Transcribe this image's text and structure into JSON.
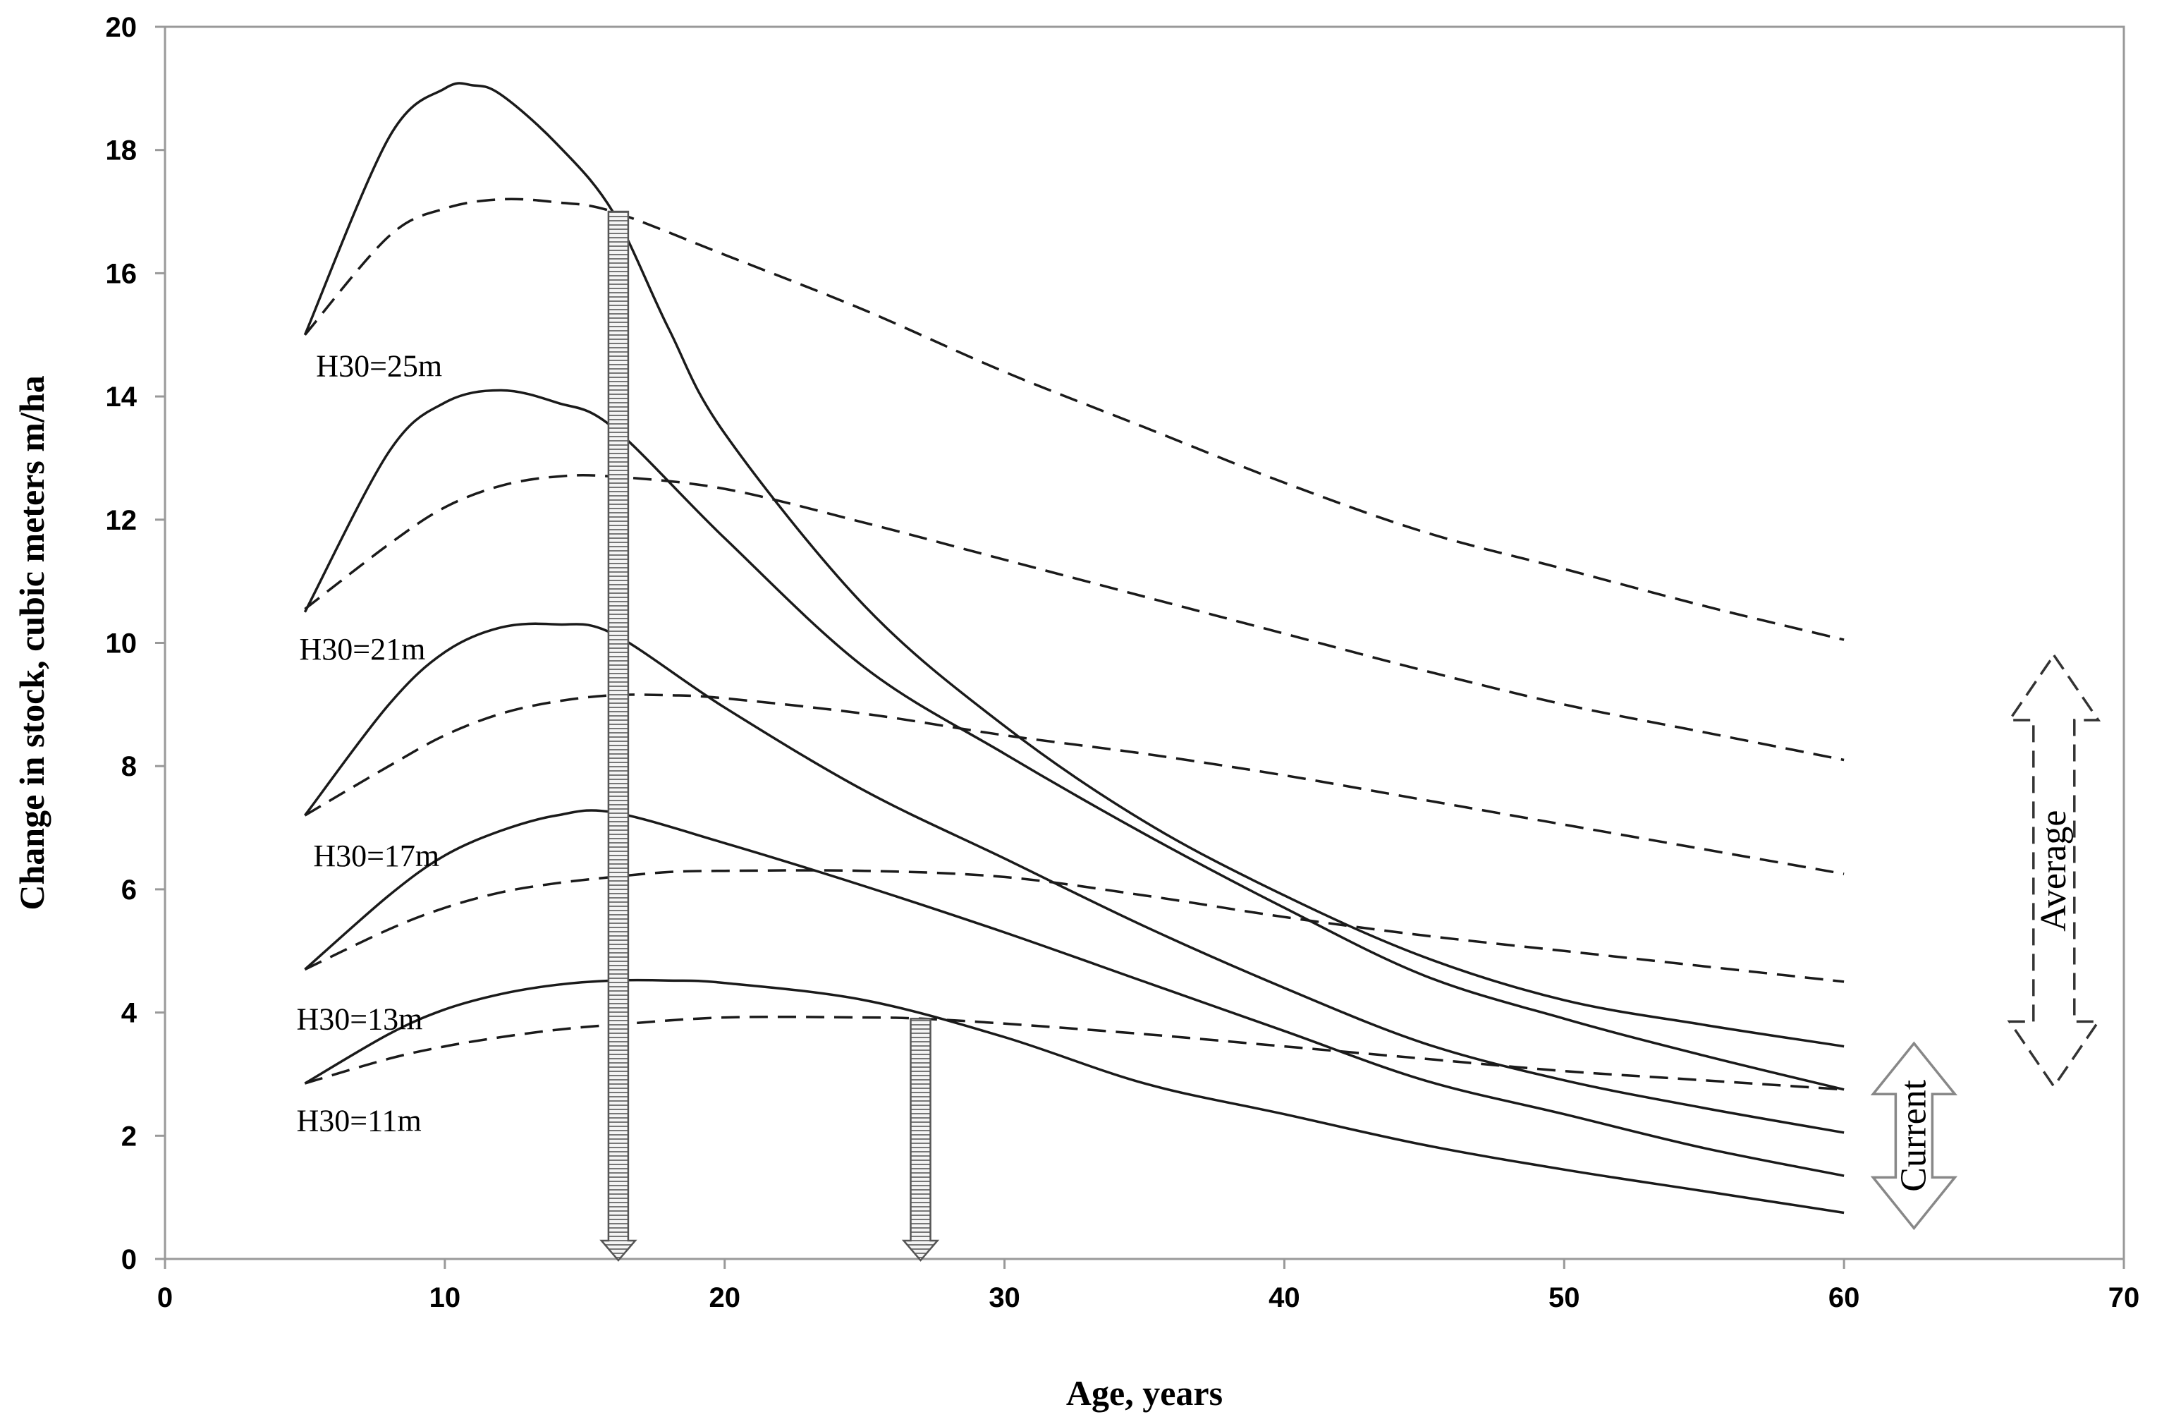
{
  "chart_data": {
    "type": "line",
    "title": "",
    "xlabel": "Age, years",
    "ylabel": "Change in stock, cubic meters m/ha",
    "xlim": [
      0,
      70
    ],
    "ylim": [
      0,
      20
    ],
    "xticks": [
      0,
      10,
      20,
      30,
      40,
      50,
      60,
      70
    ],
    "yticks": [
      0,
      2,
      4,
      6,
      8,
      10,
      12,
      14,
      16,
      18,
      20
    ],
    "grid": false,
    "legend": "none",
    "series": [
      {
        "name": "H30=25m",
        "type": "Current",
        "style": "solid",
        "x": [
          5,
          8,
          10,
          11,
          12,
          14,
          16,
          18,
          20,
          25,
          30,
          35,
          40,
          45,
          50,
          55,
          60
        ],
        "y": [
          15.0,
          18.2,
          19.0,
          19.05,
          18.9,
          18.1,
          17.0,
          15.1,
          13.4,
          10.6,
          8.65,
          7.1,
          5.9,
          4.9,
          4.2,
          3.8,
          3.45
        ]
      },
      {
        "name": "H30=25m",
        "type": "Average",
        "style": "dashed",
        "x": [
          5,
          8,
          10,
          12,
          14,
          16,
          20,
          25,
          30,
          35,
          40,
          45,
          50,
          55,
          60
        ],
        "y": [
          15.0,
          16.6,
          17.05,
          17.2,
          17.15,
          17.0,
          16.3,
          15.4,
          14.4,
          13.5,
          12.6,
          11.8,
          11.2,
          10.6,
          10.05
        ]
      },
      {
        "name": "H30=21m",
        "type": "Current",
        "style": "solid",
        "x": [
          5,
          8,
          10,
          12,
          14,
          16,
          20,
          25,
          30,
          35,
          40,
          45,
          50,
          55,
          60
        ],
        "y": [
          10.5,
          13.1,
          13.9,
          14.1,
          13.9,
          13.5,
          11.7,
          9.6,
          8.2,
          6.9,
          5.7,
          4.6,
          3.9,
          3.3,
          2.75
        ]
      },
      {
        "name": "H30=21m",
        "type": "Average",
        "style": "dashed",
        "x": [
          5,
          8,
          10,
          12,
          14,
          16,
          20,
          25,
          30,
          35,
          40,
          45,
          50,
          55,
          60
        ],
        "y": [
          10.55,
          11.6,
          12.2,
          12.55,
          12.7,
          12.7,
          12.5,
          11.95,
          11.35,
          10.75,
          10.15,
          9.55,
          9.0,
          8.55,
          8.1
        ]
      },
      {
        "name": "H30=17m",
        "type": "Current",
        "style": "solid",
        "x": [
          5,
          8,
          10,
          12,
          14,
          16,
          20,
          25,
          30,
          35,
          40,
          45,
          50,
          55,
          60
        ],
        "y": [
          7.2,
          9.0,
          9.85,
          10.25,
          10.3,
          10.15,
          8.95,
          7.6,
          6.5,
          5.4,
          4.4,
          3.5,
          2.9,
          2.45,
          2.05
        ]
      },
      {
        "name": "H30=17m",
        "type": "Average",
        "style": "dashed",
        "x": [
          5,
          8,
          10,
          12,
          14,
          16,
          18,
          20,
          25,
          30,
          35,
          40,
          45,
          50,
          55,
          60
        ],
        "y": [
          7.2,
          8.0,
          8.5,
          8.85,
          9.05,
          9.15,
          9.15,
          9.1,
          8.85,
          8.5,
          8.2,
          7.85,
          7.45,
          7.05,
          6.65,
          6.25
        ]
      },
      {
        "name": "H30=13m",
        "type": "Current",
        "style": "solid",
        "x": [
          5,
          8,
          10,
          12,
          14,
          16,
          20,
          25,
          30,
          35,
          40,
          45,
          50,
          55,
          60
        ],
        "y": [
          4.7,
          5.9,
          6.55,
          6.95,
          7.2,
          7.25,
          6.75,
          6.05,
          5.3,
          4.5,
          3.7,
          2.9,
          2.35,
          1.8,
          1.35
        ]
      },
      {
        "name": "H30=13m",
        "type": "Average",
        "style": "dashed",
        "x": [
          5,
          8,
          10,
          12,
          14,
          16,
          18,
          20,
          25,
          30,
          35,
          40,
          45,
          50,
          55,
          60
        ],
        "y": [
          4.7,
          5.35,
          5.7,
          5.95,
          6.1,
          6.2,
          6.28,
          6.3,
          6.3,
          6.2,
          5.9,
          5.55,
          5.25,
          5.0,
          4.75,
          4.5
        ]
      },
      {
        "name": "H30=11m",
        "type": "Current",
        "style": "solid",
        "x": [
          5,
          8,
          10,
          12,
          14,
          16,
          18,
          20,
          25,
          30,
          35,
          40,
          45,
          50,
          55,
          60
        ],
        "y": [
          2.85,
          3.65,
          4.05,
          4.3,
          4.45,
          4.52,
          4.52,
          4.48,
          4.2,
          3.6,
          2.85,
          2.35,
          1.85,
          1.45,
          1.1,
          0.75
        ]
      },
      {
        "name": "H30=11m",
        "type": "Average",
        "style": "dashed",
        "x": [
          5,
          8,
          10,
          12,
          14,
          16,
          20,
          25,
          27,
          30,
          35,
          40,
          45,
          50,
          55,
          60
        ],
        "y": [
          2.85,
          3.25,
          3.45,
          3.6,
          3.72,
          3.8,
          3.92,
          3.92,
          3.9,
          3.82,
          3.65,
          3.45,
          3.25,
          3.05,
          2.9,
          2.75
        ]
      }
    ],
    "annotations": {
      "curve_labels": [
        {
          "text": "H30=25m",
          "x": 5.4,
          "y": 14.5
        },
        {
          "text": "H30=21m",
          "x": 4.8,
          "y": 9.9
        },
        {
          "text": "H30=17m",
          "x": 5.3,
          "y": 6.55
        },
        {
          "text": "H30=13m",
          "x": 4.7,
          "y": 3.9
        },
        {
          "text": "H30=11m",
          "x": 4.7,
          "y": 2.25
        }
      ],
      "vertical_arrows": [
        {
          "x": 16.2,
          "y_top": 17.0
        },
        {
          "x": 27.0,
          "y_top": 3.9
        }
      ],
      "range_arrows": [
        {
          "label": "Average",
          "style": "dashed",
          "x": 67.5,
          "y_from": 2.8,
          "y_to": 9.8
        },
        {
          "label": "Current",
          "style": "solid",
          "x": 62.5,
          "y_from": 0.5,
          "y_to": 3.5
        }
      ]
    }
  }
}
